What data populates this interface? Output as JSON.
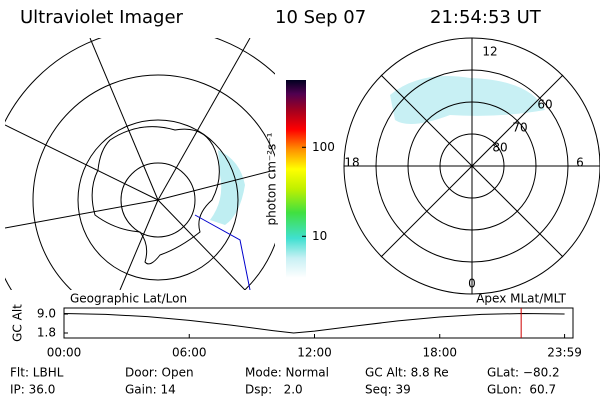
{
  "header": {
    "title": "Ultraviolet Imager",
    "date": "10 Sep 07",
    "time": "21:54:53 UT"
  },
  "left_map": {
    "caption": "Geographic Lat/Lon"
  },
  "right_map": {
    "caption": "Apex MLat/MLT",
    "mlt_labels": [
      "12",
      "18",
      "6",
      "0"
    ],
    "lat_labels": [
      "60",
      "70",
      "80"
    ]
  },
  "colorbar": {
    "label": "photon cm⁻²s⁻¹",
    "log": true,
    "range": [
      3.4,
      570
    ],
    "ticks": [
      10,
      100
    ]
  },
  "altitude_plot": {
    "ylabel": "GC Alt",
    "ylim": [
      -0.1,
      11.3
    ],
    "yticks": [
      {
        "value": 9,
        "label": "9.0"
      },
      1.8
    ],
    "xlim": [
      0,
      24
    ],
    "xticks": [
      {
        "value": 0,
        "label": "00:00"
      },
      {
        "value": 6,
        "label": "06:00"
      },
      {
        "value": 12,
        "label": "12:00"
      },
      {
        "value": 18,
        "label": "18:00"
      },
      {
        "value": 23.98,
        "label": "23:59"
      }
    ],
    "x": [
      0,
      2,
      4,
      6,
      8,
      10,
      11,
      12,
      14,
      16,
      18,
      20,
      22,
      23.98
    ],
    "values": [
      9.2,
      8.9,
      8.0,
      6.6,
      4.8,
      2.7,
      1.8,
      2.5,
      4.5,
      6.4,
      7.9,
      8.9,
      9.2,
      9.0
    ],
    "marker_time": 21.9,
    "marker_color": "#cc0000"
  },
  "footer": {
    "rows": [
      [
        "Flt: LBHL",
        "Door: Open",
        "Mode: Normal",
        "GC Alt: 8.8 Re",
        "GLat: −80.2"
      ],
      [
        "IP: 36.0",
        "Gain: 14",
        "Dsp:   2.0",
        "Seq: 39",
        "GLon:  60.7"
      ]
    ]
  }
}
